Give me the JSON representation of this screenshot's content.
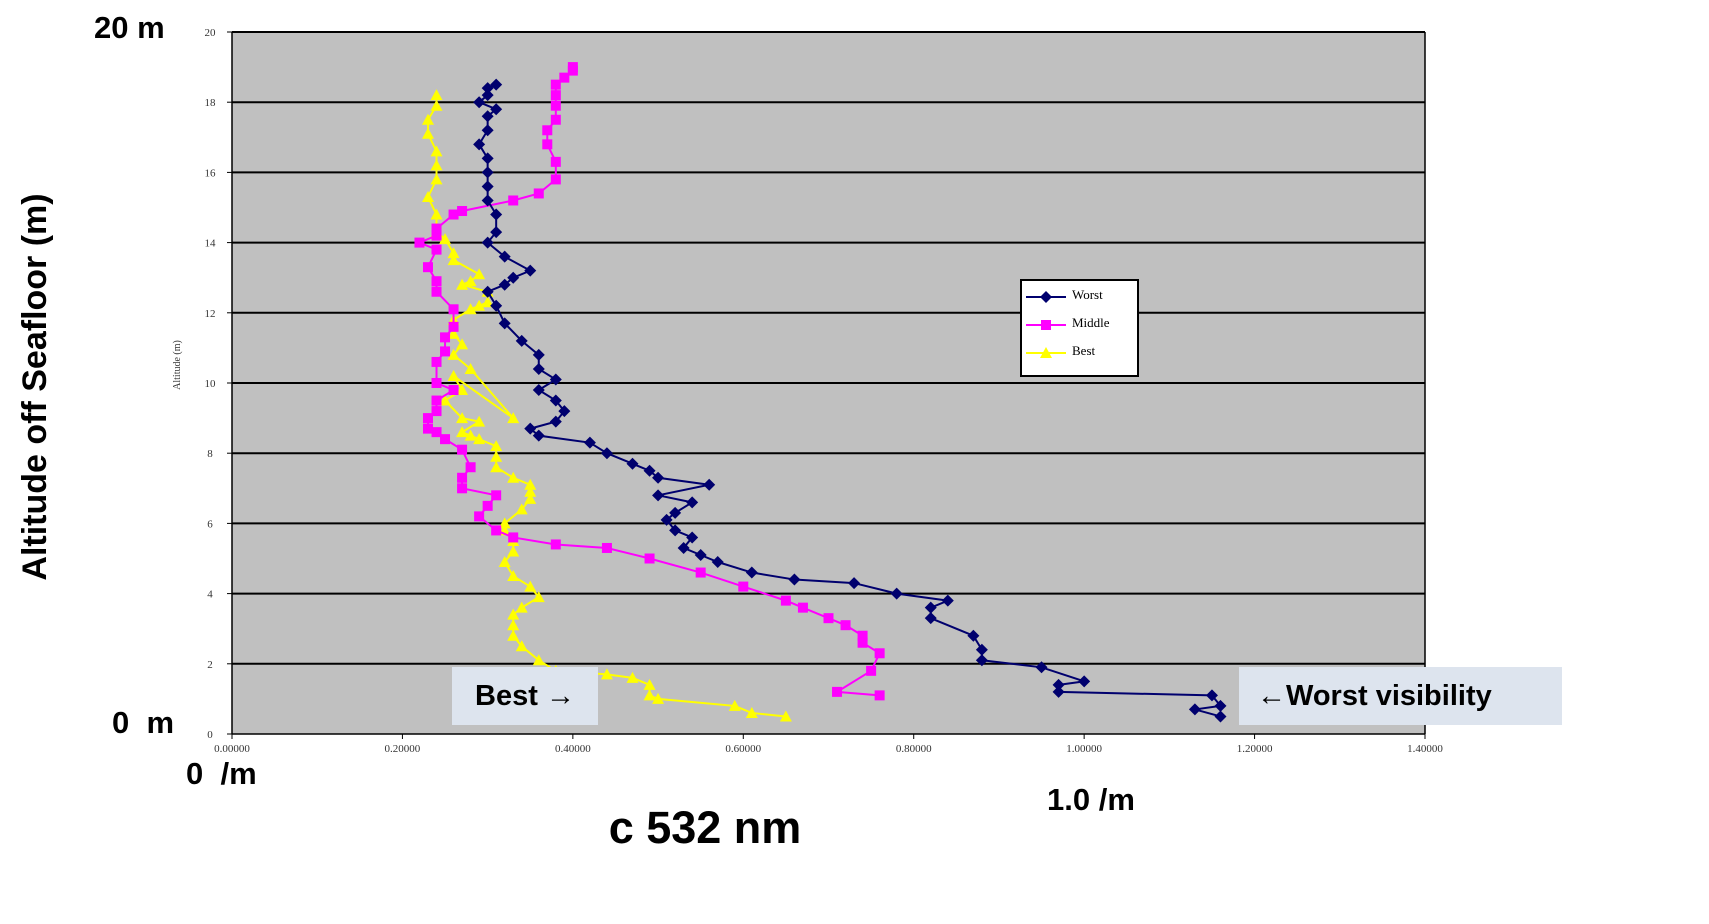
{
  "chart_data": {
    "type": "line",
    "inner_ylabel": "Altitude (m)",
    "xlim": [
      0,
      1.4
    ],
    "ylim": [
      0,
      20
    ],
    "x_ticks": [
      "0.00000",
      "0.20000",
      "0.40000",
      "0.60000",
      "0.80000",
      "1.00000",
      "1.20000",
      "1.40000"
    ],
    "x_tick_values": [
      0,
      0.2,
      0.4,
      0.6,
      0.8,
      1.0,
      1.2,
      1.4
    ],
    "y_ticks": [
      "0",
      "2",
      "4",
      "6",
      "8",
      "10",
      "12",
      "14",
      "16",
      "18",
      "20"
    ],
    "y_tick_values": [
      0,
      2,
      4,
      6,
      8,
      10,
      12,
      14,
      16,
      18,
      20
    ],
    "grid": "horizontal",
    "legend_position": "right-center",
    "background": "#c0c0c0",
    "series": [
      {
        "name": "Worst",
        "color": "#00006e",
        "marker": "diamond",
        "x": [
          1.16,
          1.13,
          1.16,
          1.15,
          0.97,
          0.97,
          1.0,
          0.95,
          0.88,
          0.88,
          0.87,
          0.82,
          0.82,
          0.84,
          0.78,
          0.73,
          0.66,
          0.61,
          0.57,
          0.55,
          0.53,
          0.54,
          0.52,
          0.51,
          0.52,
          0.54,
          0.5,
          0.56,
          0.5,
          0.49,
          0.47,
          0.44,
          0.42,
          0.36,
          0.35,
          0.38,
          0.39,
          0.38,
          0.36,
          0.38,
          0.36,
          0.36,
          0.34,
          0.32,
          0.31,
          0.3,
          0.32,
          0.33,
          0.35,
          0.32,
          0.3,
          0.31,
          0.31,
          0.3,
          0.3,
          0.3,
          0.3,
          0.29,
          0.3,
          0.3,
          0.31,
          0.29,
          0.3,
          0.3,
          0.31
        ],
        "y": [
          0.5,
          0.7,
          0.8,
          1.1,
          1.2,
          1.4,
          1.5,
          1.9,
          2.1,
          2.4,
          2.8,
          3.3,
          3.6,
          3.8,
          4.0,
          4.3,
          4.4,
          4.6,
          4.9,
          5.1,
          5.3,
          5.6,
          5.8,
          6.1,
          6.3,
          6.6,
          6.8,
          7.1,
          7.3,
          7.5,
          7.7,
          8.0,
          8.3,
          8.5,
          8.7,
          8.9,
          9.2,
          9.5,
          9.8,
          10.1,
          10.4,
          10.8,
          11.2,
          11.7,
          12.2,
          12.6,
          12.8,
          13.0,
          13.2,
          13.6,
          14.0,
          14.3,
          14.8,
          15.2,
          15.6,
          16.0,
          16.4,
          16.8,
          17.2,
          17.6,
          17.8,
          18.0,
          18.2,
          18.4,
          18.5
        ]
      },
      {
        "name": "Middle",
        "color": "#ff00ff",
        "marker": "square",
        "x": [
          0.76,
          0.71,
          0.75,
          0.76,
          0.74,
          0.74,
          0.72,
          0.7,
          0.67,
          0.65,
          0.6,
          0.55,
          0.49,
          0.44,
          0.38,
          0.33,
          0.31,
          0.29,
          0.3,
          0.31,
          0.27,
          0.27,
          0.28,
          0.27,
          0.25,
          0.24,
          0.23,
          0.23,
          0.24,
          0.24,
          0.26,
          0.24,
          0.24,
          0.25,
          0.25,
          0.26,
          0.26,
          0.24,
          0.24,
          0.23,
          0.24,
          0.22,
          0.24,
          0.24,
          0.26,
          0.27,
          0.33,
          0.36,
          0.38,
          0.38,
          0.37,
          0.37,
          0.38,
          0.38,
          0.38,
          0.38,
          0.39,
          0.4,
          0.4
        ],
        "y": [
          1.1,
          1.2,
          1.8,
          2.3,
          2.6,
          2.8,
          3.1,
          3.3,
          3.6,
          3.8,
          4.2,
          4.6,
          5.0,
          5.3,
          5.4,
          5.6,
          5.8,
          6.2,
          6.5,
          6.8,
          7.0,
          7.3,
          7.6,
          8.1,
          8.4,
          8.6,
          8.7,
          9.0,
          9.2,
          9.5,
          9.8,
          10.0,
          10.6,
          10.9,
          11.3,
          11.6,
          12.1,
          12.6,
          12.9,
          13.3,
          13.8,
          14.0,
          14.2,
          14.4,
          14.8,
          14.9,
          15.2,
          15.4,
          15.8,
          16.3,
          16.8,
          17.2,
          17.5,
          17.9,
          18.2,
          18.5,
          18.7,
          18.9,
          19.0
        ]
      },
      {
        "name": "Best",
        "color": "#ffff00",
        "marker": "triangle",
        "x": [
          0.65,
          0.61,
          0.59,
          0.5,
          0.49,
          0.49,
          0.47,
          0.44,
          0.38,
          0.36,
          0.34,
          0.33,
          0.33,
          0.33,
          0.34,
          0.36,
          0.35,
          0.33,
          0.32,
          0.33,
          0.33,
          0.32,
          0.32,
          0.34,
          0.35,
          0.35,
          0.35,
          0.33,
          0.31,
          0.31,
          0.31,
          0.29,
          0.28,
          0.27,
          0.29,
          0.27,
          0.25,
          0.27,
          0.26,
          0.33,
          0.28,
          0.26,
          0.27,
          0.26,
          0.26,
          0.28,
          0.29,
          0.3,
          0.3,
          0.27,
          0.28,
          0.29,
          0.26,
          0.26,
          0.25,
          0.24,
          0.24,
          0.23,
          0.24,
          0.24,
          0.24,
          0.23,
          0.23,
          0.24,
          0.24
        ],
        "y": [
          0.5,
          0.6,
          0.8,
          1.0,
          1.1,
          1.4,
          1.6,
          1.7,
          1.8,
          2.1,
          2.5,
          2.8,
          3.1,
          3.4,
          3.6,
          3.9,
          4.2,
          4.5,
          4.9,
          5.2,
          5.5,
          5.8,
          6.0,
          6.4,
          6.7,
          6.9,
          7.1,
          7.3,
          7.6,
          7.9,
          8.2,
          8.4,
          8.5,
          8.6,
          8.9,
          9.0,
          9.5,
          9.8,
          10.2,
          9.0,
          10.4,
          10.8,
          11.1,
          11.4,
          11.8,
          12.1,
          12.2,
          12.3,
          12.6,
          12.8,
          12.9,
          13.1,
          13.5,
          13.7,
          14.1,
          14.3,
          14.8,
          15.3,
          15.8,
          16.2,
          16.6,
          17.1,
          17.5,
          17.9,
          18.2
        ]
      }
    ]
  },
  "annotations": {
    "y_top": "20 m",
    "y_bottom": "0  m",
    "x_left": "0  /m",
    "x_right": "1.0 /m",
    "x_title": "c 532 nm",
    "y_title": "Altitude off Seafloor (m)",
    "best_box": "Best →",
    "worst_box": "←Worst visibility"
  }
}
